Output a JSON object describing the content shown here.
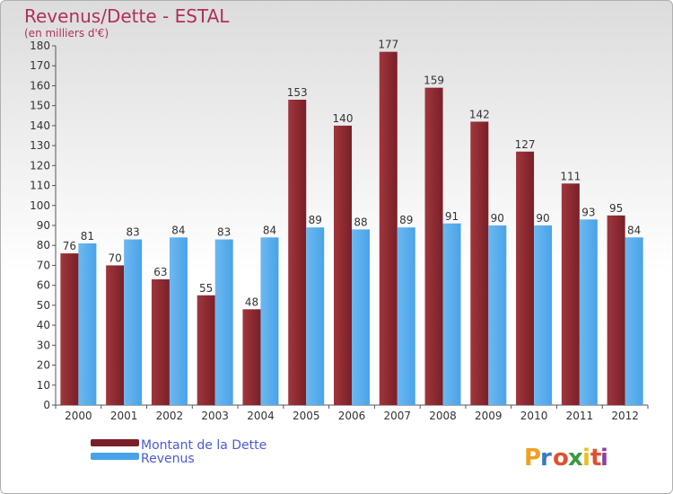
{
  "chart_data": {
    "type": "bar",
    "title": "Revenus/Dette - ESTAL",
    "subtitle": "(en milliers d'€)",
    "categories": [
      "2000",
      "2001",
      "2002",
      "2003",
      "2004",
      "2005",
      "2006",
      "2007",
      "2008",
      "2009",
      "2010",
      "2011",
      "2012"
    ],
    "series": [
      {
        "name": "Montant de la Dette",
        "color": "#7a1f27",
        "values": [
          76,
          70,
          63,
          55,
          48,
          153,
          140,
          177,
          159,
          142,
          127,
          111,
          95
        ]
      },
      {
        "name": "Revenus",
        "color": "#4aa3e8",
        "values": [
          81,
          83,
          84,
          83,
          84,
          89,
          88,
          89,
          91,
          90,
          90,
          93,
          84
        ]
      }
    ],
    "ylim": [
      0,
      180
    ],
    "ytick_step": 10,
    "grid": false,
    "legend": "bottom-left"
  },
  "logo": {
    "letters": [
      "P",
      "r",
      "o",
      "x",
      "i",
      "t",
      "i"
    ],
    "colors": [
      "#f0a020",
      "#3a78c8",
      "#e05030",
      "#3a9a40",
      "#e8c020",
      "#e05030",
      "#9040a0"
    ]
  }
}
